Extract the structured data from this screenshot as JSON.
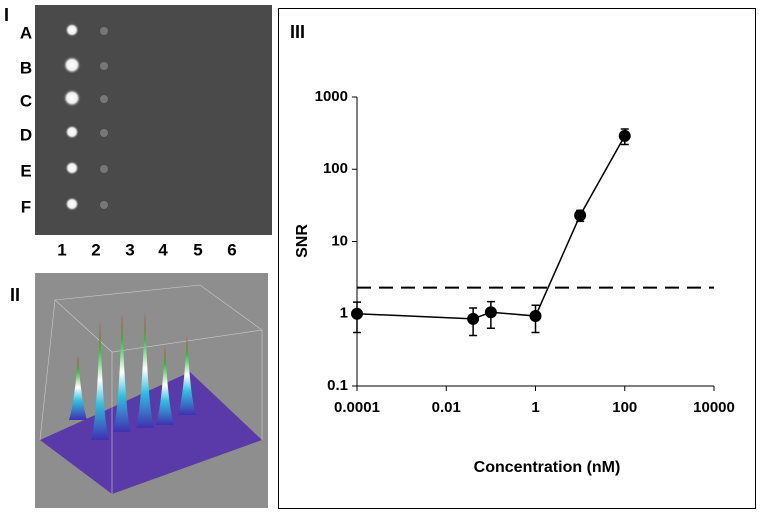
{
  "panels": {
    "I": {
      "label": "I",
      "rows": [
        "A",
        "B",
        "C",
        "D",
        "E",
        "F"
      ],
      "columns": [
        "1",
        "2",
        "3",
        "4",
        "5",
        "6"
      ]
    },
    "II": {
      "label": "II"
    },
    "III": {
      "label": "III"
    }
  },
  "chart_data": {
    "type": "line",
    "xlabel": "Concentration (nM)",
    "ylabel": "SNR",
    "xscale": "log",
    "yscale": "log",
    "x": [
      0.0001,
      0.04,
      0.1,
      1,
      10,
      100
    ],
    "series": [
      {
        "name": "SNR",
        "color": "#000000",
        "values": [
          1.0,
          0.85,
          1.05,
          0.93,
          23,
          290
        ],
        "errors": [
          0.45,
          0.35,
          0.42,
          0.38,
          4,
          70
        ]
      }
    ],
    "xlim": [
      0.0001,
      10000
    ],
    "xticks": [
      0.0001,
      0.01,
      1,
      100,
      10000
    ],
    "ylim": [
      0.1,
      1000
    ],
    "yticks": [
      0.1,
      1,
      10,
      100,
      1000
    ],
    "reference_line": {
      "value": 2.3,
      "style": "dashed"
    }
  }
}
